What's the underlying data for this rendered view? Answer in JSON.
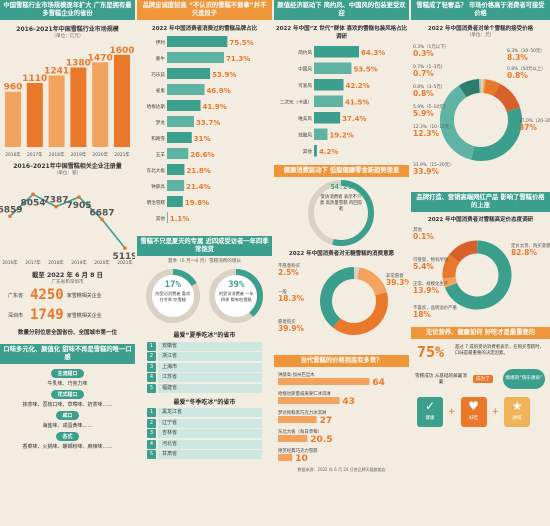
{
  "col1": {
    "banner": "中国雪糕行业市场规模逐年扩大 广东是拥有最多雪糕企业的省份",
    "market_title": "2016–2021年中国雪糕行业市场规模",
    "market_unit": "（单位：亿元）",
    "count_title": "2016–2021年中国雪糕相关企业注册量",
    "count_unit": "（单位：家）",
    "asof_title": "截至 2022 年 6 月 8 日",
    "asof_sub": "广东省和深圳市",
    "gd_label": "广东省",
    "gd_value": "4250",
    "gd_suffix": "家雪糕相关企业",
    "sz_label": "深圳市",
    "sz_value": "1749",
    "sz_suffix": "家雪糕相关企业",
    "rank_note": "数量分别位居全国省份、全国城市第一位",
    "flavor_banner": "口味多元化、颜值化 甜味不再是雪糕的唯一口感",
    "flavors": [
      {
        "tag": "主流甜口",
        "text": "牛乳味、巧克力味"
      },
      {
        "tag": "花式甜口",
        "text": "抹茶味、荔枝口味、草莓味、奶茶味……"
      },
      {
        "tag": "咸口",
        "text": "海盐味、咸蛋黄味……"
      },
      {
        "tag": "各式",
        "text": "香菜味、火锅味、螺蛳粉味、麻辣味……"
      }
    ]
  },
  "col2": {
    "banner": "品牌忠诚度较高 “不认识的雪糕不要拿”并不只是段子",
    "brand_title": "2022 年中国消费者消费过的雪糕品牌占比",
    "season_banner": "雪糕不只是夏天的专属 近四成受访者一年四季常饱货",
    "season_sub": "夏季（6 月～8 月）雪糕消费的增长",
    "donut1_value": "17%",
    "donut1_text": "的受访消费者 喜欢在冬季 吃雪糕",
    "donut2_value": "39%",
    "donut2_text": "的受访消费者 一年四季 都有吃雪糕",
    "pref_title": "最爱“夏季吃冰”的省市",
    "summer_list": [
      "安徽省",
      "浙江省",
      "上海市",
      "江苏省",
      "福建省"
    ],
    "winter_title": "最爱“冬季吃冰”的省市",
    "winter_list": [
      "黑龙江省",
      "辽宁省",
      "吉林省",
      "河北省",
      "甘肃省"
    ]
  },
  "col3": {
    "banner": "颜值经济驱动下 简约风、中国风的包装更受欢迎",
    "pack_title": "2022 年中国“Z 世代”群体 喜欢的雪糕包装风格占比调研",
    "health_banner": "健康消费驱动下 低脂健康零食新趋势渐显",
    "health_text": "受访消费者 表示不介意 高热量雪糕 的回答者",
    "health_value": "54.2%",
    "ingredient_title": "2022 年中国消费者对无糖雪糕的消费意愿",
    "price_banner": "当代雪糕的价格到底有多贵？",
    "price_note": "数据来源：2022 年 6 月 24 日各品牌天猫旗舰店"
  },
  "col4": {
    "banner": "雪糕成了轻奢品？ 市场价格高于消费者可接受价格",
    "accept_title": "2022 年中国消费者对单个雪糕的接受价格",
    "accept_unit": "（单位：元）",
    "brand_banner": "品牌打造、营销高端网红产品 影响了雪糕价格的上涨",
    "attitude_title": "2022 年中国消费者对雪糕高定价态度调研",
    "win_banner": "无论营养、健康如何 好吃才是最重要的",
    "win_value": "75%",
    "win_text": "超过 7 成的受访消费者表示，在购买雪糕时，口味是最重要的决定因素。",
    "win_formula": "雪糕成功 从基础的解暑消暑",
    "win_arrow": "成为了",
    "win_tag": "情绪的“快乐源泉”",
    "icon_labels": [
      "健康",
      "好吃",
      "颜值"
    ]
  },
  "chart_data": [
    {
      "type": "bar",
      "title": "2016–2021年中国雪糕行业市场规模",
      "ylabel": "亿元",
      "categories": [
        "2016年",
        "2017年",
        "2018年",
        "2019年",
        "2020年",
        "2021年"
      ],
      "values": [
        960,
        1110,
        1241,
        1380,
        1470,
        1600
      ],
      "ylim": [
        0,
        1700
      ]
    },
    {
      "type": "line",
      "title": "2016–2021年中国雪糕相关企业注册量",
      "ylabel": "家",
      "categories": [
        "2016年",
        "2017年",
        "2018年",
        "2019年",
        "2020年",
        "2021年"
      ],
      "values": [
        6859,
        8054,
        7387,
        7905,
        6687,
        5119
      ],
      "ylim": [
        4800,
        8400
      ]
    },
    {
      "type": "bar",
      "title": "2022 年中国消费者消费过的雪糕品牌占比",
      "categories": [
        "伊利",
        "蒙牛",
        "巧乐兹",
        "雀巢",
        "哈根达斯",
        "梦龙",
        "和路雪",
        "五羊",
        "东北大板",
        "钟薛高",
        "明治雪糕",
        "其他"
      ],
      "values": [
        75.5,
        71.3,
        53.9,
        46.9,
        41.9,
        33.7,
        31.0,
        26.6,
        21.8,
        21.4,
        19.8,
        1.1
      ],
      "unit": "%",
      "xlim": [
        0,
        100
      ]
    },
    {
      "type": "bar",
      "title": "2022 年中国“Z 世代”群体 喜欢的雪糕包装风格占比调研",
      "categories": [
        "简约风",
        "中国风",
        "可爱风",
        "二次元（卡通）",
        "唯美风",
        "炫酷风",
        "其他"
      ],
      "values": [
        64.3,
        53.5,
        42.2,
        41.5,
        37.4,
        19.2,
        4.2
      ],
      "unit": "%",
      "xlim": [
        0,
        100
      ]
    },
    {
      "type": "pie",
      "title": "2022 年中国消费者对无糖雪糕的消费意愿",
      "categories": [
        "不愿意购买",
        "一般",
        "愿意购买",
        "非常愿意"
      ],
      "values": [
        2.5,
        18.3,
        39.9,
        39.3
      ],
      "unit": "%"
    },
    {
      "type": "bar",
      "title": "当代雪糕的价格到底有多贵？",
      "categories": [
        "钟薛高·加州巴旦木",
        "哈根达斯夏威夷果仁冰淇淋",
        "梦龙纯粹黑巧克力冰淇淋",
        "东北大板（每日草莓）",
        "德芙经典巧克力雪糕"
      ],
      "values": [
        64,
        43,
        27,
        20.5,
        10
      ],
      "ylabel": "元"
    },
    {
      "type": "pie",
      "title": "2022 年中国消费者对单个雪糕的接受价格",
      "categories": [
        "0.3%（1元以下）",
        "0.7%（1–3元）",
        "0.8%（3–5元）",
        "5.9%（5–10元）",
        "12.3%（10–15元）",
        "33.9%（15–20元）",
        "37.0%（20–30元）",
        "8.3%（30–50元）",
        "0.8%（50元以上）"
      ],
      "values": [
        0.3,
        0.7,
        0.8,
        5.9,
        12.3,
        33.9,
        37.0,
        8.3,
        0.8
      ],
      "unit": "%"
    },
    {
      "type": "pie",
      "title": "2022 年中国消费者对雪糕高定价态度调研",
      "categories": [
        "其他",
        "定价太贵，购买意愿减弱",
        "可接受，物有所值",
        "正常，规模化生产",
        "不喜欢，品牌溢价严重"
      ],
      "values": [
        0.1,
        82.8,
        5.4,
        13.9,
        18.0
      ],
      "unit": "%"
    }
  ]
}
